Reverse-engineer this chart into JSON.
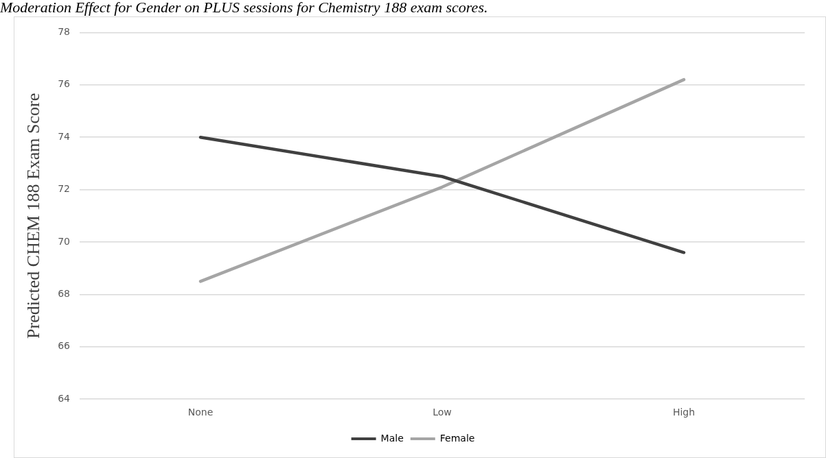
{
  "chart_data": {
    "type": "line",
    "title": "Moderation Effect for Gender on PLUS sessions for Chemistry 188 exam scores.",
    "ylabel": "Predicted CHEM 188 Exam Score",
    "categories": [
      "None",
      "Low",
      "High"
    ],
    "series": [
      {
        "name": "Male",
        "color": "#404040",
        "values": [
          74,
          72.5,
          69.6
        ]
      },
      {
        "name": "Female",
        "color": "#a5a5a5",
        "values": [
          68.5,
          72.1,
          76.2
        ]
      }
    ],
    "ylim": [
      64,
      78
    ],
    "yticks": [
      64,
      66,
      68,
      70,
      72,
      74,
      76,
      78
    ],
    "grid": "y",
    "legend": "bottom",
    "marker": "none"
  }
}
